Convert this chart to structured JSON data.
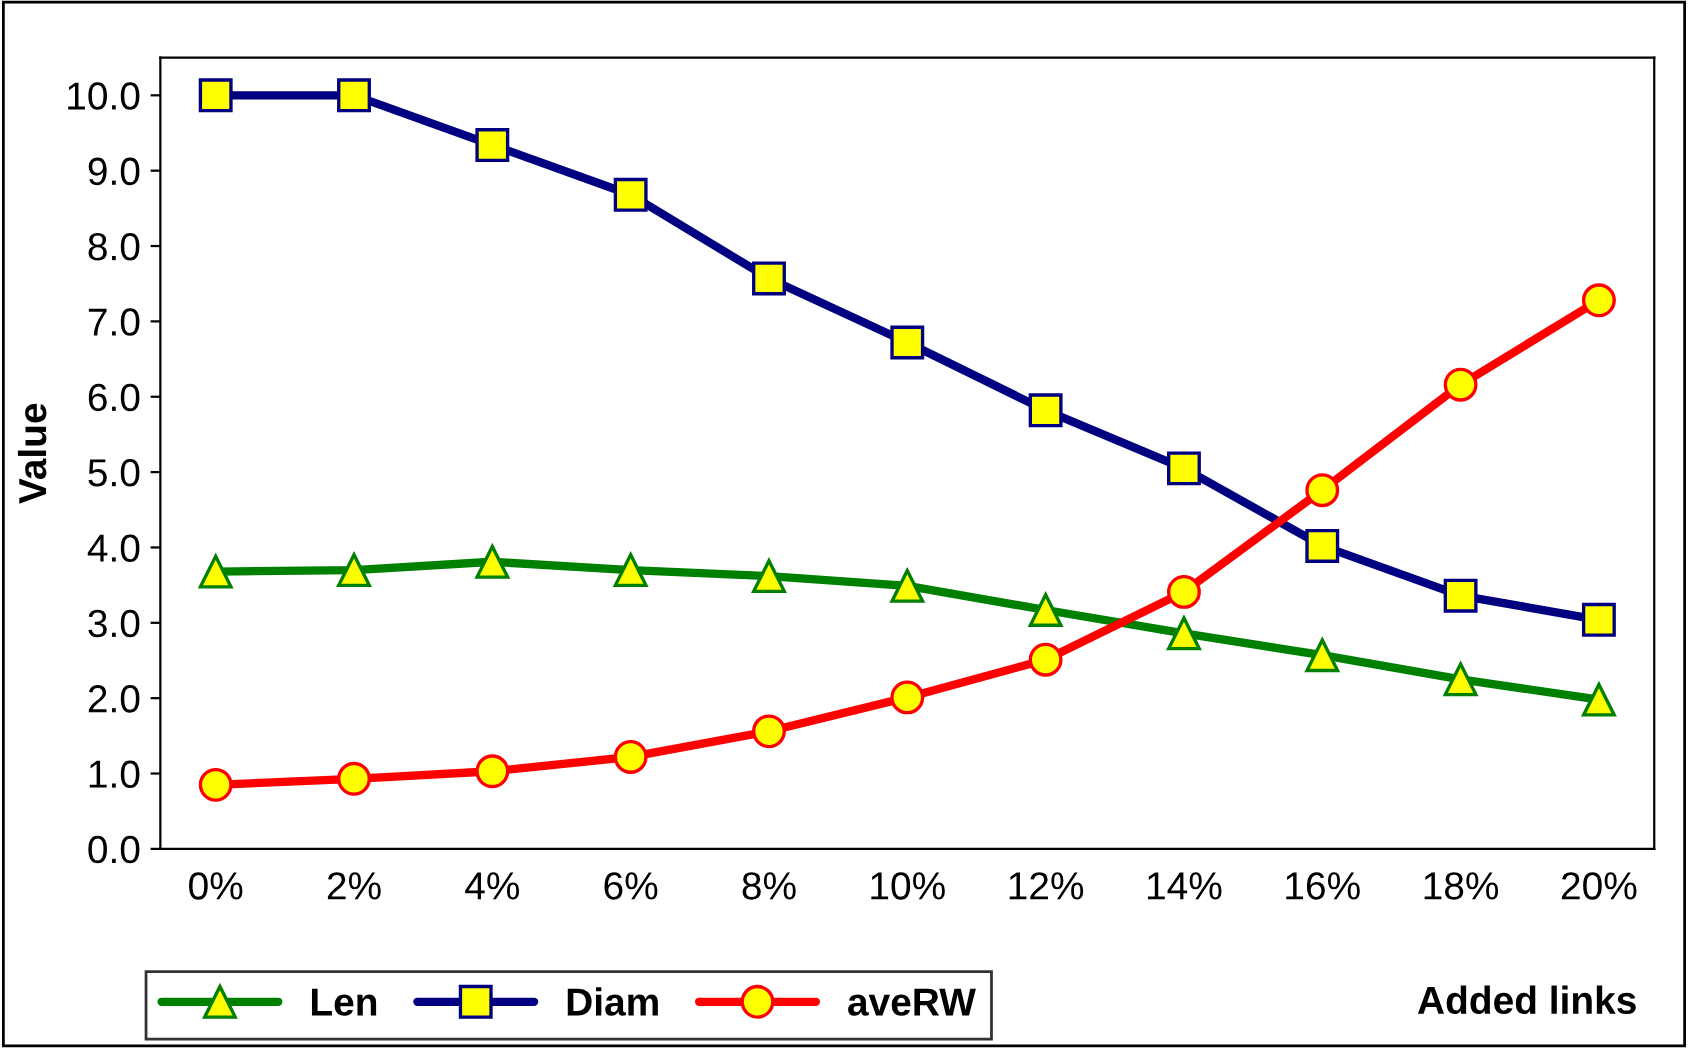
{
  "chart_data": {
    "type": "line",
    "ylabel": "Value",
    "xlabel": "Added links",
    "categories": [
      "0%",
      "2%",
      "4%",
      "6%",
      "8%",
      "10%",
      "12%",
      "14%",
      "16%",
      "18%",
      "20%"
    ],
    "series": [
      {
        "name": "Len",
        "color": "#008000",
        "marker": "triangle",
        "values": [
          3.68,
          3.7,
          3.81,
          3.7,
          3.62,
          3.49,
          3.17,
          2.86,
          2.57,
          2.25,
          1.98
        ]
      },
      {
        "name": "Diam",
        "color": "#000080",
        "marker": "square",
        "values": [
          10.0,
          10.0,
          9.34,
          8.68,
          7.57,
          6.72,
          5.82,
          5.05,
          4.02,
          3.36,
          3.04
        ]
      },
      {
        "name": "aveRW",
        "color": "#ff0000",
        "marker": "circle",
        "values": [
          0.85,
          0.93,
          1.03,
          1.22,
          1.56,
          2.01,
          2.51,
          3.41,
          4.76,
          6.16,
          7.28
        ]
      }
    ],
    "ylim": [
      0,
      10.5
    ],
    "yticks": [
      {
        "value": 0,
        "label": "0.0"
      },
      {
        "value": 1,
        "label": "1.0"
      },
      {
        "value": 2,
        "label": "2.0"
      },
      {
        "value": 3,
        "label": "3.0"
      },
      {
        "value": 4,
        "label": "4.0"
      },
      {
        "value": 5,
        "label": "5.0"
      },
      {
        "value": 6,
        "label": "6.0"
      },
      {
        "value": 7,
        "label": "7.0"
      },
      {
        "value": 8,
        "label": "8.0"
      },
      {
        "value": 9,
        "label": "9.0"
      },
      {
        "value": 10,
        "label": "10.0"
      }
    ],
    "grid": false,
    "legend": "bottom left",
    "line_style": "solid"
  }
}
